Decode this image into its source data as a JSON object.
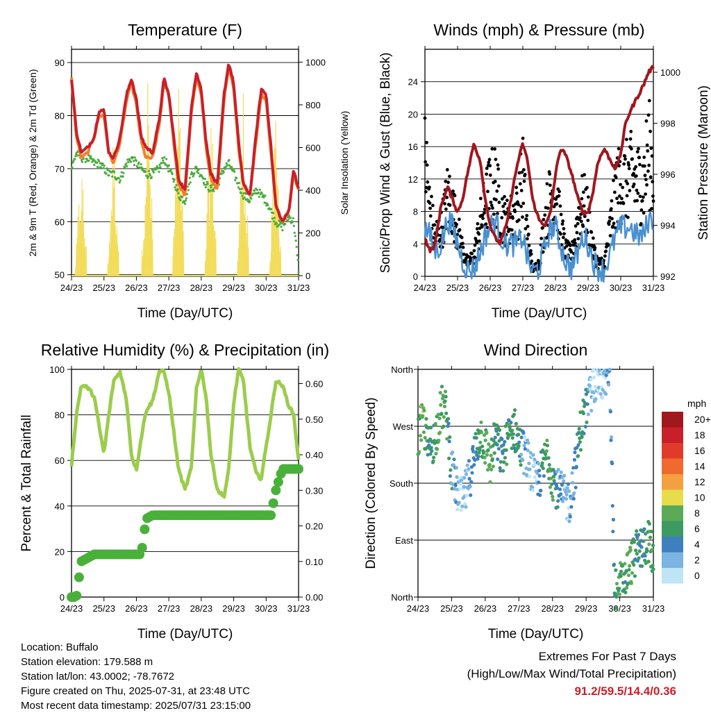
{
  "colors": {
    "red": "#c8202a",
    "orange": "#f08030",
    "green": "#4aab3c",
    "yellow": "#f2dc5a",
    "black": "#000000",
    "blue": "#4a90d0",
    "maroon": "#a0171e",
    "rh_green": "#9ccc4c",
    "rain_green": "#49b03a",
    "grid": "#000000"
  },
  "x_ticks": [
    "24/23",
    "25/23",
    "26/23",
    "27/23",
    "28/23",
    "29/23",
    "30/23",
    "31/23"
  ],
  "x_title": "Time (Day/UTC)",
  "info": {
    "location": "Location: Buffalo",
    "elevation": "Station elevation: 179.588 m",
    "latlon": "Station lat/lon: 43.0002; -78.7672",
    "created": "Figure created on Thu, 2025-07-31, at 23:48 UTC",
    "recent": "Most recent data timestamp: 2025/07/31 23:15:00"
  },
  "extremes": {
    "line1": "Extremes For Past 7 Days",
    "line2": "(High/Low/Max Wind/Total Precipitation)",
    "values": "91.2/59.5/14.4/0.36"
  },
  "chart_data": [
    {
      "id": "temperature",
      "type": "line",
      "title": "Temperature (F)",
      "xlabel": "Time (Day/UTC)",
      "ylabel": "2m & 9m T (Red, Orange) & 2m Td (Green)",
      "ylabel_right": "Solar Insolation (Yellow)",
      "ylim": [
        49.7,
        92.5
      ],
      "y_ticks": [
        "50",
        "60",
        "70",
        "80",
        "90"
      ],
      "ylim_right": [
        -3,
        1060
      ],
      "y_ticks_right": [
        "0",
        "200",
        "400",
        "600",
        "800",
        "1000"
      ],
      "x": [
        0,
        0.15,
        0.3,
        0.5,
        0.7,
        0.85,
        1.0,
        1.15,
        1.3,
        1.5,
        1.7,
        1.85,
        2.0,
        2.15,
        2.3,
        2.5,
        2.7,
        2.85,
        3.0,
        3.15,
        3.3,
        3.5,
        3.7,
        3.85,
        4.0,
        4.15,
        4.3,
        4.5,
        4.7,
        4.85,
        5.0,
        5.15,
        5.3,
        5.5,
        5.7,
        5.85,
        6.0,
        6.15,
        6.3,
        6.5,
        6.7,
        6.85,
        7.0
      ],
      "series": [
        {
          "name": "2m T",
          "color": "red",
          "values": [
            87,
            77,
            73,
            74,
            76,
            81,
            81,
            73,
            72,
            76,
            84,
            87,
            83,
            76,
            74,
            73,
            79,
            87,
            84,
            76,
            68,
            66,
            82,
            88,
            85,
            75,
            69,
            67,
            84,
            90,
            86,
            75,
            67,
            65,
            77,
            85,
            84,
            74,
            63,
            60,
            62,
            70,
            66
          ]
        },
        {
          "name": "9m T",
          "color": "orange",
          "values": [
            87,
            76,
            72,
            73,
            76,
            80,
            80,
            73,
            71,
            75,
            83,
            86,
            82,
            75,
            72,
            72,
            78,
            86,
            84,
            75,
            67,
            65,
            81,
            87,
            84,
            74,
            68,
            66,
            83,
            89,
            85,
            74,
            67,
            65,
            76,
            84,
            83,
            73,
            63,
            60,
            62,
            69,
            66
          ]
        },
        {
          "name": "2m Td",
          "color": "green",
          "values": [
            70,
            73,
            72,
            72,
            71,
            71,
            70,
            69,
            69,
            68,
            71,
            72,
            71,
            70,
            69,
            69,
            70,
            72,
            70,
            68,
            65,
            64,
            69,
            70,
            69,
            67,
            66,
            67,
            70,
            71,
            69,
            67,
            65,
            64,
            66,
            65,
            64,
            62,
            60,
            59,
            61,
            60,
            51
          ]
        }
      ],
      "solar_days": [
        0.3,
        1.3,
        2.35,
        3.3,
        4.3,
        5.3,
        6.3
      ],
      "solar_peaks": [
        600,
        750,
        1000,
        960,
        870,
        920,
        820
      ]
    },
    {
      "id": "winds",
      "type": "line",
      "title": "Winds (mph) & Pressure (mb)",
      "xlabel": "Time (Day/UTC)",
      "ylabel": "Sonic/Prop Wind & Gust (Blue, Black)",
      "ylabel_right": "Station Pressure (Maroon)",
      "ylim": [
        0,
        28
      ],
      "y_ticks": [
        "0",
        "4",
        "8",
        "12",
        "16",
        "20",
        "24"
      ],
      "ylim_right": [
        992,
        1000.9
      ],
      "y_ticks_right": [
        "992",
        "994",
        "996",
        "998",
        "1000"
      ],
      "x": [
        0,
        0.15,
        0.3,
        0.5,
        0.7,
        0.85,
        1.0,
        1.15,
        1.3,
        1.5,
        1.7,
        1.85,
        2.0,
        2.15,
        2.3,
        2.5,
        2.7,
        2.85,
        3.0,
        3.15,
        3.3,
        3.5,
        3.7,
        3.85,
        4.0,
        4.15,
        4.3,
        4.5,
        4.7,
        4.85,
        5.0,
        5.15,
        5.3,
        5.5,
        5.7,
        5.85,
        6.0,
        6.15,
        6.3,
        6.5,
        6.7,
        6.85,
        7.0
      ],
      "series": [
        {
          "name": "Wind",
          "color": "blue",
          "values": [
            6,
            5,
            3,
            4,
            7,
            6,
            4,
            2,
            0.8,
            1,
            3,
            5,
            6,
            7,
            5,
            4,
            4,
            4,
            5,
            2,
            0.5,
            1,
            4,
            6,
            6,
            4,
            2,
            1,
            3,
            5,
            4,
            2,
            1,
            0.8,
            3,
            5,
            6,
            6,
            6,
            5,
            5,
            7,
            7
          ]
        },
        {
          "name": "Gust",
          "color": "black",
          "values": [
            18,
            10,
            6,
            7,
            12,
            10,
            7,
            4,
            2,
            3,
            8,
            11,
            13,
            14,
            10,
            8,
            9,
            10,
            15,
            6,
            1,
            2,
            9,
            12,
            12,
            8,
            4,
            3,
            9,
            11,
            9,
            4,
            2,
            2,
            8,
            13,
            14,
            14,
            15,
            14,
            14,
            19,
            15
          ]
        },
        {
          "name": "Pressure",
          "color": "maroon",
          "values": [
            993.5,
            993,
            993.2,
            994.8,
            995.5,
            995,
            994.5,
            995,
            996,
            997.2,
            996.5,
            995,
            994,
            993.5,
            993.3,
            994,
            995.5,
            996.5,
            997.2,
            996.5,
            995,
            994.2,
            994,
            994.5,
            996,
            997,
            996.8,
            996,
            995,
            994.5,
            994.5,
            995.3,
            996.5,
            997,
            996.5,
            996.2,
            996.8,
            998,
            998.5,
            999,
            999.5,
            1000,
            1000.2
          ]
        }
      ]
    },
    {
      "id": "humidity",
      "type": "line",
      "title": "Relative Humidity (%) & Precipitation (in)",
      "xlabel": "Time (Day/UTC)",
      "ylabel": "Percent & Total Rainfall",
      "ylim": [
        0,
        100
      ],
      "y_ticks": [
        "0",
        "20",
        "40",
        "60",
        "80",
        "100"
      ],
      "ylim_right": [
        0,
        0.64
      ],
      "y_ticks_right": [
        "0.00",
        "0.10",
        "0.20",
        "0.30",
        "0.40",
        "0.50",
        "0.60"
      ],
      "x": [
        0,
        0.15,
        0.3,
        0.5,
        0.7,
        0.85,
        1.0,
        1.15,
        1.3,
        1.5,
        1.7,
        1.85,
        2.0,
        2.15,
        2.3,
        2.5,
        2.7,
        2.85,
        3.0,
        3.15,
        3.3,
        3.5,
        3.7,
        3.85,
        4.0,
        4.15,
        4.3,
        4.5,
        4.7,
        4.85,
        5.0,
        5.15,
        5.3,
        5.5,
        5.7,
        5.85,
        6.0,
        6.15,
        6.3,
        6.5,
        6.7,
        6.85,
        7.0
      ],
      "series": [
        {
          "name": "RH",
          "color": "rh_green",
          "values": [
            58,
            80,
            93,
            92,
            88,
            75,
            63,
            80,
            95,
            99,
            86,
            62,
            56,
            70,
            82,
            86,
            99,
            99,
            90,
            73,
            56,
            47,
            57,
            92,
            100,
            88,
            62,
            47,
            44,
            56,
            85,
            100,
            95,
            66,
            54,
            52,
            66,
            80,
            95,
            93,
            84,
            80,
            60
          ]
        },
        {
          "name": "Precip",
          "color": "rain_green",
          "values": [
            0,
            0,
            0.1,
            0.11,
            0.12,
            0.12,
            0.12,
            0.12,
            0.12,
            0.12,
            0.12,
            0.12,
            0.12,
            0.12,
            0.22,
            0.23,
            0.23,
            0.23,
            0.23,
            0.23,
            0.23,
            0.23,
            0.23,
            0.23,
            0.23,
            0.23,
            0.23,
            0.23,
            0.23,
            0.23,
            0.23,
            0.23,
            0.23,
            0.23,
            0.23,
            0.23,
            0.23,
            0.23,
            0.3,
            0.36,
            0.36,
            0.36,
            0.36
          ]
        }
      ]
    },
    {
      "id": "direction",
      "type": "scatter",
      "title": "Wind Direction",
      "xlabel": "Time (Day/UTC)",
      "ylabel": "Direction (Colored By Speed)",
      "ylim": [
        0,
        360
      ],
      "y_ticks": [
        "North",
        "East",
        "South",
        "West",
        "North"
      ],
      "legend_title": "mph",
      "legend_labels": [
        "20+",
        "18",
        "16",
        "14",
        "12",
        "10",
        "8",
        "6",
        "4",
        "2",
        "0"
      ],
      "legend_colors": [
        "#a0171e",
        "#c8202a",
        "#e03a2a",
        "#f06a30",
        "#f5a040",
        "#e8dc4a",
        "#5aaa58",
        "#3d9a60",
        "#3f7fc0",
        "#7ab4e0",
        "#bfe4f6"
      ],
      "x": [
        0,
        0.15,
        0.3,
        0.5,
        0.7,
        0.85,
        1.0,
        1.15,
        1.3,
        1.5,
        1.7,
        1.85,
        2.0,
        2.15,
        2.3,
        2.5,
        2.7,
        2.85,
        3.0,
        3.15,
        3.3,
        3.5,
        3.7,
        3.85,
        4.0,
        4.15,
        4.3,
        4.5,
        4.7,
        4.85,
        5.0,
        5.15,
        5.3,
        5.5,
        5.7,
        5.85,
        6.0,
        6.15,
        6.3,
        6.5,
        6.7,
        6.85,
        7.0
      ],
      "series": [
        {
          "name": "Direction",
          "values": [
            250,
            280,
            235,
            250,
            300,
            290,
            200,
            170,
            150,
            180,
            230,
            260,
            240,
            210,
            250,
            220,
            255,
            270,
            240,
            230,
            210,
            180,
            200,
            230,
            190,
            170,
            160,
            150,
            210,
            270,
            300,
            320,
            350,
            340,
            350,
            10,
            20,
            30,
            50,
            70,
            80,
            90,
            60
          ]
        },
        {
          "name": "Speed",
          "values": [
            6,
            9,
            5,
            6,
            8,
            6,
            4,
            2,
            1,
            2,
            4,
            6,
            7,
            8,
            5,
            5,
            6,
            5,
            6,
            2,
            1,
            1,
            5,
            7,
            7,
            4,
            2,
            2,
            4,
            6,
            5,
            2,
            1,
            1,
            3,
            6,
            7,
            6,
            8,
            5,
            5,
            7,
            7
          ]
        }
      ]
    }
  ]
}
